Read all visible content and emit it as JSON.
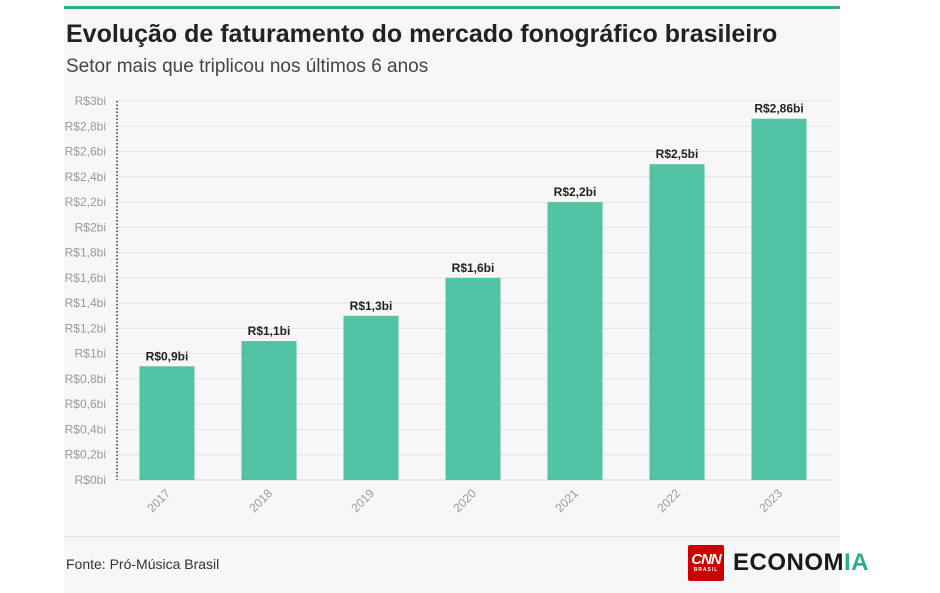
{
  "header": {
    "title": "Evolução de faturamento do mercado fonográfico brasileiro",
    "subtitle": "Setor mais que triplicou nos últimos 6 anos"
  },
  "footer": {
    "source": "Fonte: Pró-Música Brasil",
    "logo_cnn": "CNN",
    "logo_cnn_sub": "BRASIL",
    "logo_economia_main": "ECONOM",
    "logo_economia_accent": "IA"
  },
  "colors": {
    "bar": "#52c3a4",
    "accent": "#2eaf8a",
    "brand_red": "#cc0000"
  },
  "chart_data": {
    "type": "bar",
    "categories": [
      "2017",
      "2018",
      "2019",
      "2020",
      "2021",
      "2022",
      "2023"
    ],
    "values": [
      0.9,
      1.1,
      1.3,
      1.6,
      2.2,
      2.5,
      2.86
    ],
    "data_labels": [
      "R$0,9bi",
      "R$1,1bi",
      "R$1,3bi",
      "R$1,6bi",
      "R$2,2bi",
      "R$2,5bi",
      "R$2,86bi"
    ],
    "y_ticks": [
      0,
      0.2,
      0.4,
      0.6,
      0.8,
      1,
      1.2,
      1.4,
      1.6,
      1.8,
      2,
      2.2,
      2.4,
      2.6,
      2.8,
      3
    ],
    "y_tick_labels": [
      "R$0bi",
      "R$0,2bi",
      "R$0,4bi",
      "R$0,6bi",
      "R$0,8bi",
      "R$1bi",
      "R$1,2bi",
      "R$1,4bi",
      "R$1,6bi",
      "R$1,8bi",
      "R$2bi",
      "R$2,2bi",
      "R$2,4bi",
      "R$2,6bi",
      "R$2,8bi",
      "R$3bi"
    ],
    "ylim": [
      0,
      3
    ],
    "grid": true,
    "title": "Evolução de faturamento do mercado fonográfico brasileiro",
    "subtitle": "Setor mais que triplicou nos últimos 6 anos"
  }
}
